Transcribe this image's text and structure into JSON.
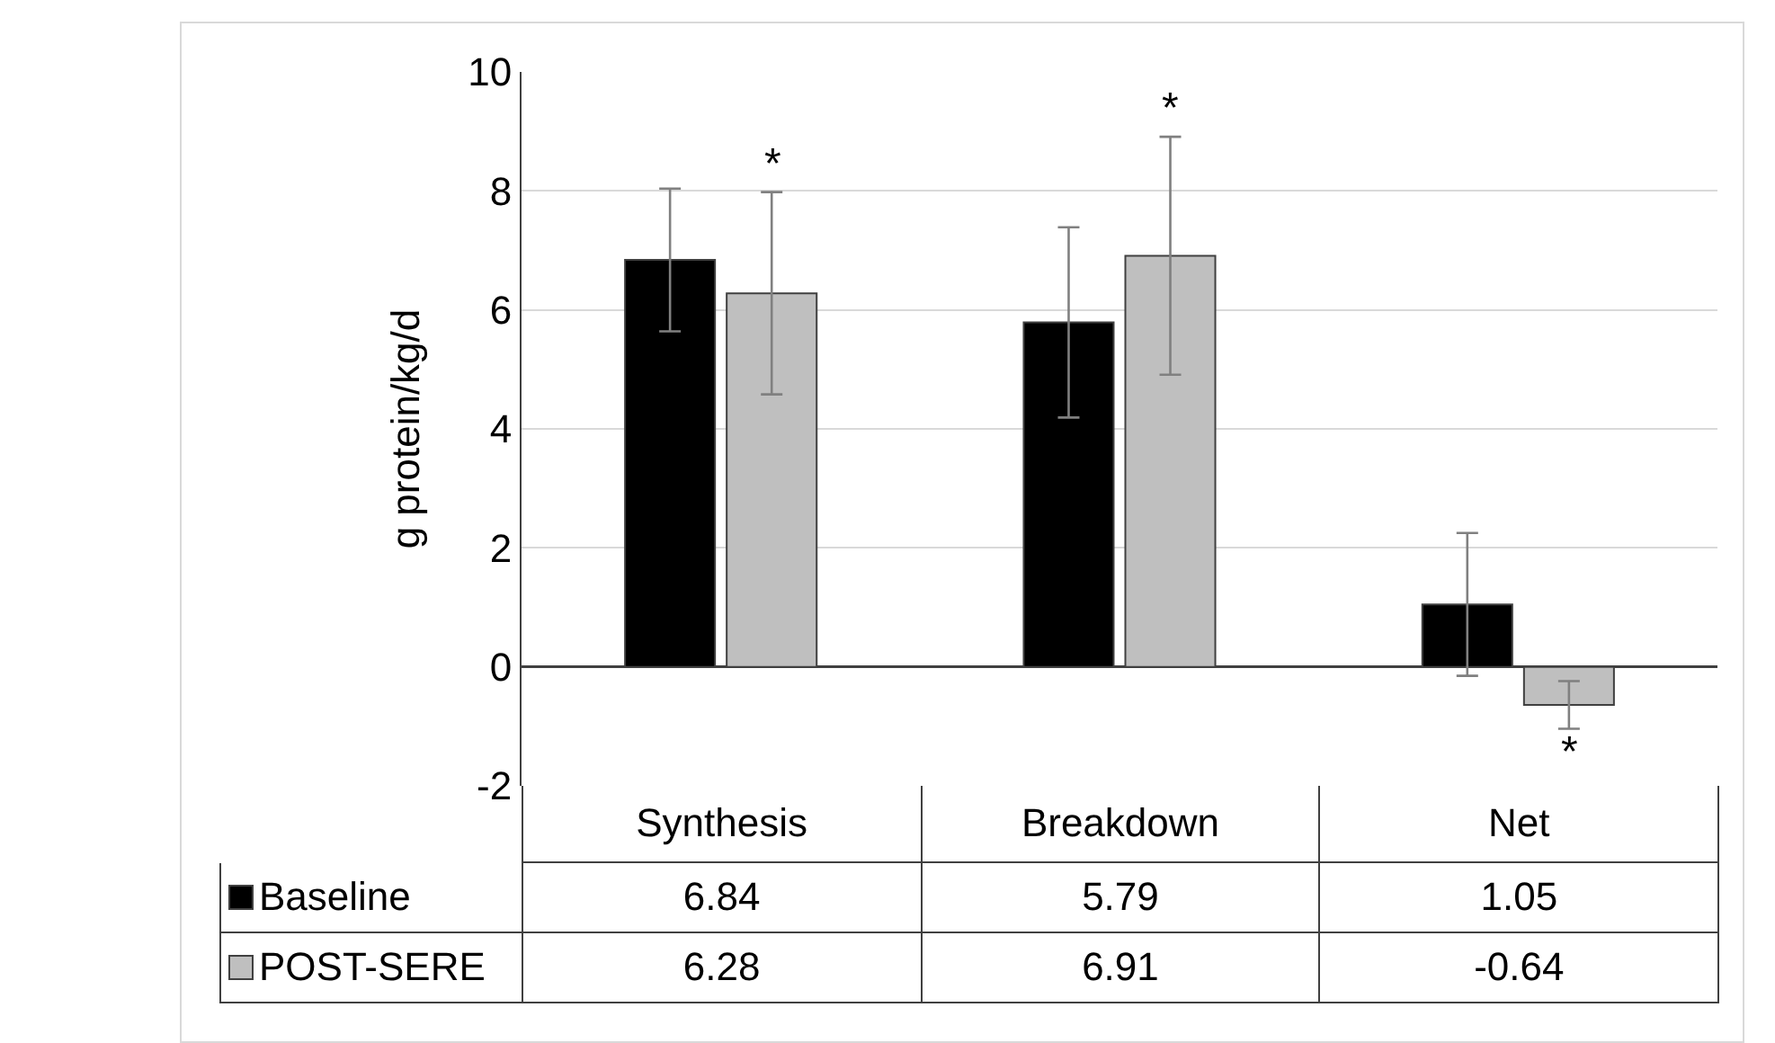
{
  "chart_data": {
    "type": "bar",
    "ylabel": "g protein/kg/d",
    "categories": [
      "Synthesis",
      "Breakdown",
      "Net"
    ],
    "series": [
      {
        "name": "Baseline",
        "color": "#000000",
        "values": [
          6.84,
          5.79,
          1.05
        ],
        "errors": [
          1.2,
          1.6,
          1.2
        ]
      },
      {
        "name": "POST-SERE",
        "color": "#bfbfbf",
        "values": [
          6.28,
          6.91,
          -0.64
        ],
        "errors": [
          1.7,
          2.0,
          0.4
        ]
      }
    ],
    "ylim": [
      -2,
      10
    ],
    "yticks": [
      -2,
      0,
      2,
      4,
      6,
      8,
      10
    ],
    "grid": "y",
    "data_labels": true,
    "legend": "bottom left",
    "annotations": [
      "*",
      "*",
      "*"
    ]
  }
}
